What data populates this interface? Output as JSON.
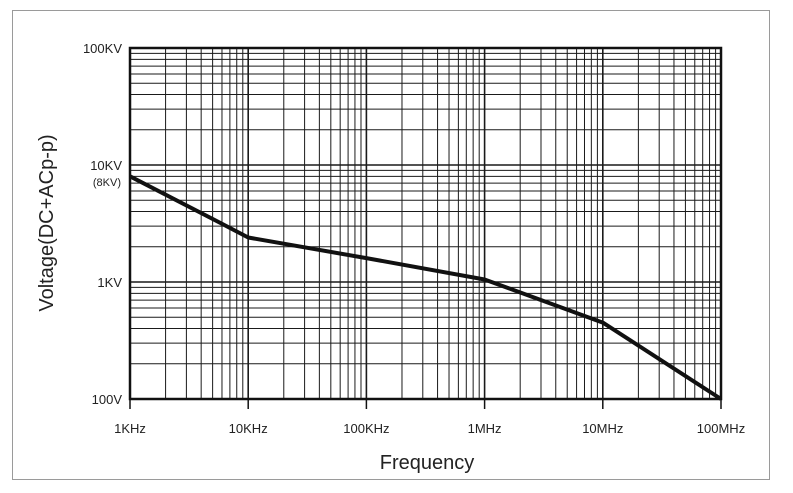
{
  "chart_data": {
    "type": "line",
    "title": "",
    "xlabel": "Frequency",
    "ylabel": "Voltage(DC+ACp-p)",
    "x_scale": "log",
    "y_scale": "log",
    "xlim": [
      1000,
      100000000
    ],
    "ylim": [
      100,
      100000
    ],
    "grid": true,
    "x_ticks": [
      {
        "value": 1000,
        "label": "1KHz"
      },
      {
        "value": 10000,
        "label": "10KHz"
      },
      {
        "value": 100000,
        "label": "100KHz"
      },
      {
        "value": 1000000,
        "label": "1MHz"
      },
      {
        "value": 10000000,
        "label": "10MHz"
      },
      {
        "value": 100000000,
        "label": "100MHz"
      }
    ],
    "y_ticks": [
      {
        "value": 100000,
        "label": "100KV"
      },
      {
        "value": 10000,
        "label": "10KV"
      },
      {
        "value": 1000,
        "label": "1KV"
      },
      {
        "value": 100,
        "label": "100V"
      }
    ],
    "annotations": [
      {
        "value": 8000,
        "label": "(8KV)"
      }
    ],
    "series": [
      {
        "x": [
          1000,
          5800,
          10000,
          100000,
          1000000,
          10000000,
          100000000
        ],
        "y": [
          8000,
          3200,
          2400,
          1600,
          1050,
          450,
          100
        ]
      }
    ],
    "colors": {
      "line": "#111111",
      "grid": "#1a1a1a",
      "frame": "#9a9a9a"
    }
  }
}
